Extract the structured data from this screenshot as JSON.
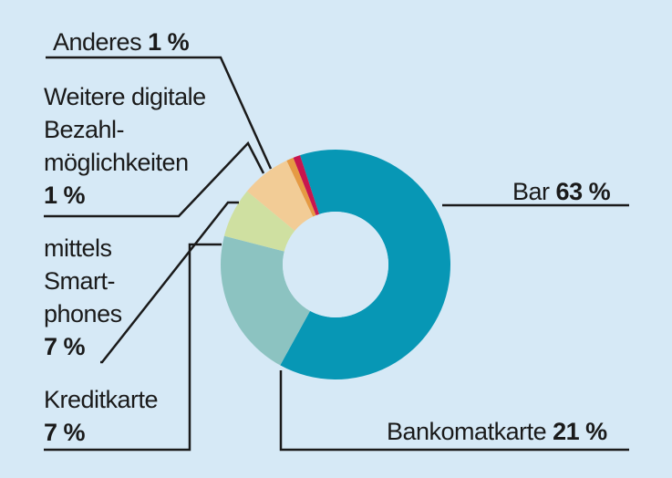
{
  "chart_data": {
    "type": "pie",
    "variant": "donut",
    "slices": [
      {
        "label": "Bar",
        "value": 63,
        "display": "63 %",
        "color": "#0797b5"
      },
      {
        "label": "Bankomatkarte",
        "value": 21,
        "display": "21 %",
        "color": "#8cc3c1"
      },
      {
        "label": "Kreditkarte",
        "value": 7,
        "display": "7 %",
        "color": "#cfe0a1"
      },
      {
        "label": "mittels Smart-phones",
        "value": 7,
        "display": "7 %",
        "color": "#f2cc96"
      },
      {
        "label": "Weitere digitale Bezahl-möglichkeiten",
        "value": 1,
        "display": "1 %",
        "color": "#e69a43"
      },
      {
        "label": "Anderes",
        "value": 1,
        "display": "1 %",
        "color": "#c8154e"
      }
    ]
  },
  "labels": {
    "bar": {
      "name": "Bar",
      "pct": "63 %"
    },
    "bankomat": {
      "name": "Bankomatkarte",
      "pct": "21 %"
    },
    "kredit": {
      "line1": "Kreditkarte",
      "pct": "7 %"
    },
    "smart": {
      "line1": "mittels",
      "line2": "Smart-",
      "line3": "phones",
      "pct": "7 %"
    },
    "weitere": {
      "line1": "Weitere digitale",
      "line2": "Bezahl-",
      "line3": "möglichkeiten",
      "pct": "1 %"
    },
    "anderes": {
      "name": "Anderes",
      "pct": "1 %"
    }
  }
}
